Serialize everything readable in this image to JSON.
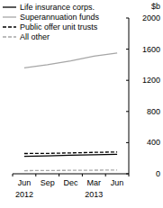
{
  "chart_data": {
    "type": "line",
    "y_label": "$b",
    "categories": [
      "Jun\n2012",
      "Sep",
      "Dec",
      "Mar\n2013",
      "Jun"
    ],
    "series": [
      {
        "name": "Life insurance corps.",
        "color": "#000000",
        "line_style": "solid",
        "values": [
          225,
          230,
          238,
          244,
          250
        ]
      },
      {
        "name": "Superannuation funds",
        "color": "#a6a6a6",
        "line_style": "solid",
        "values": [
          1360,
          1400,
          1450,
          1510,
          1550
        ]
      },
      {
        "name": "Public offer unit trusts",
        "color": "#000000",
        "line_style": "dashed",
        "values": [
          260,
          262,
          268,
          275,
          280
        ]
      },
      {
        "name": "All other",
        "color": "#a6a6a6",
        "line_style": "dashed",
        "values": [
          40,
          42,
          44,
          46,
          48
        ]
      }
    ],
    "ylim": [
      0,
      2000
    ],
    "yticks": [
      0,
      400,
      800,
      1200,
      1600,
      2000
    ],
    "grid": false,
    "legend": "top-left"
  }
}
